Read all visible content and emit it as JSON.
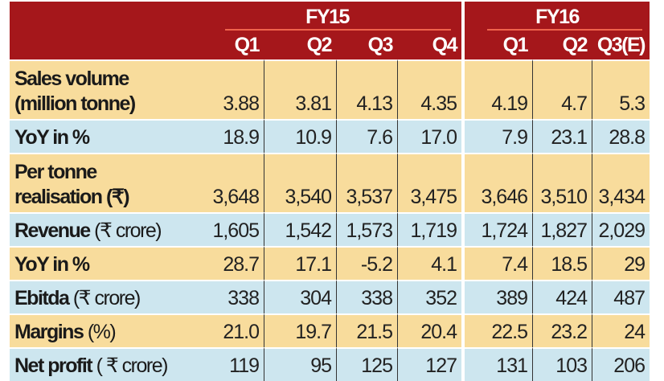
{
  "header": {
    "groups": [
      "FY15",
      "FY16"
    ],
    "quarters": [
      "Q1",
      "Q2",
      "Q3",
      "Q4",
      "Q1",
      "Q2",
      "Q3(E)"
    ]
  },
  "colors": {
    "header": "#a5171b",
    "row_yellow": "#f8dc9c",
    "row_blue": "#cde6ef"
  },
  "rows": [
    {
      "label": "Sales volume",
      "unit": "(million tonne)",
      "values": [
        "3.88",
        "3.81",
        "4.13",
        "4.35",
        "4.19",
        "4.7",
        "5.3"
      ]
    },
    {
      "label": "YoY in %",
      "unit": "",
      "values": [
        "18.9",
        "10.9",
        "7.6",
        "17.0",
        "7.9",
        "23.1",
        "28.8"
      ]
    },
    {
      "label": "Per tonne",
      "unit": "realisation (₹)",
      "values": [
        "3,648",
        "3,540",
        "3,537",
        "3,475",
        "3,646",
        "3,510",
        "3,434"
      ]
    },
    {
      "label": "Revenue",
      "unit": "(₹ crore)",
      "values": [
        "1,605",
        "1,542",
        "1,573",
        "1,719",
        "1,724",
        "1,827",
        "2,029"
      ]
    },
    {
      "label": "YoY in %",
      "unit": "",
      "values": [
        "28.7",
        "17.1",
        "-5.2",
        "4.1",
        "7.4",
        "18.5",
        "29"
      ]
    },
    {
      "label": "Ebitda",
      "unit": "(₹ crore)",
      "values": [
        "338",
        "304",
        "338",
        "352",
        "389",
        "424",
        "487"
      ]
    },
    {
      "label": "Margins",
      "unit": "(%)",
      "values": [
        "21.0",
        "19.7",
        "21.5",
        "20.4",
        "22.5",
        "23.2",
        "24"
      ]
    },
    {
      "label": "Net profit",
      "unit": "( ₹ crore)",
      "values": [
        "119",
        "95",
        "125",
        "127",
        "131",
        "103",
        "206"
      ]
    }
  ]
}
